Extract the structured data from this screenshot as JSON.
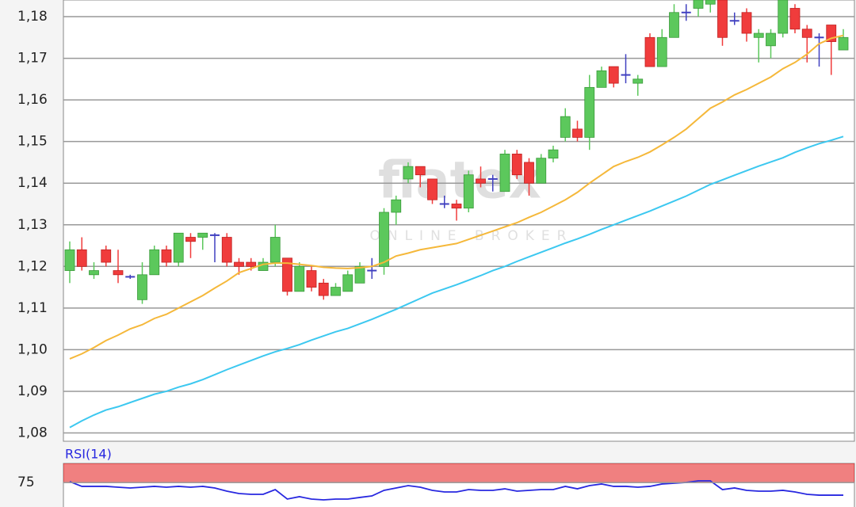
{
  "chart_data": [
    {
      "type": "candlestick",
      "watermark": "flatex",
      "watermark_subtitle": "ONLINE BROKER",
      "open": [
        1.119,
        1.124,
        1.118,
        1.124,
        1.119,
        1.1175,
        1.112,
        1.118,
        1.124,
        1.121,
        1.127,
        1.127,
        1.1275,
        1.127,
        1.121,
        1.121,
        1.119,
        1.121,
        1.122,
        1.114,
        1.119,
        1.116,
        1.113,
        1.114,
        1.116,
        1.119,
        1.12,
        1.133,
        1.141,
        1.144,
        1.141,
        1.135,
        1.135,
        1.134,
        1.141,
        1.141,
        1.138,
        1.147,
        1.145,
        1.14,
        1.146,
        1.151,
        1.153,
        1.151,
        1.163,
        1.168,
        1.166,
        1.164,
        1.175,
        1.168,
        1.175,
        1.181,
        1.182,
        1.183,
        1.184,
        1.179,
        1.181,
        1.175,
        1.173,
        1.176,
        1.182,
        1.177,
        1.175,
        1.178,
        1.172
      ],
      "high": [
        1.126,
        1.127,
        1.121,
        1.125,
        1.124,
        1.118,
        1.121,
        1.125,
        1.125,
        1.128,
        1.128,
        1.128,
        1.128,
        1.128,
        1.122,
        1.122,
        1.122,
        1.13,
        1.122,
        1.121,
        1.12,
        1.117,
        1.116,
        1.119,
        1.121,
        1.122,
        1.134,
        1.137,
        1.145,
        1.144,
        1.141,
        1.137,
        1.136,
        1.143,
        1.144,
        1.142,
        1.148,
        1.148,
        1.146,
        1.147,
        1.149,
        1.158,
        1.155,
        1.166,
        1.168,
        1.168,
        1.171,
        1.166,
        1.176,
        1.177,
        1.183,
        1.183,
        1.184,
        1.184,
        1.184,
        1.181,
        1.182,
        1.177,
        1.177,
        1.184,
        1.183,
        1.178,
        1.176,
        1.178,
        1.177
      ],
      "low": [
        1.116,
        1.119,
        1.117,
        1.12,
        1.116,
        1.117,
        1.111,
        1.118,
        1.12,
        1.12,
        1.122,
        1.124,
        1.121,
        1.12,
        1.118,
        1.119,
        1.119,
        1.12,
        1.113,
        1.114,
        1.114,
        1.112,
        1.113,
        1.114,
        1.116,
        1.117,
        1.118,
        1.13,
        1.14,
        1.139,
        1.135,
        1.134,
        1.131,
        1.133,
        1.139,
        1.138,
        1.138,
        1.141,
        1.137,
        1.14,
        1.145,
        1.15,
        1.15,
        1.148,
        1.163,
        1.163,
        1.164,
        1.161,
        1.168,
        1.168,
        1.175,
        1.179,
        1.18,
        1.181,
        1.173,
        1.178,
        1.174,
        1.169,
        1.17,
        1.175,
        1.176,
        1.169,
        1.168,
        1.166,
        1.172
      ],
      "close": [
        1.124,
        1.12,
        1.119,
        1.121,
        1.118,
        1.1175,
        1.118,
        1.124,
        1.121,
        1.128,
        1.126,
        1.128,
        1.1275,
        1.121,
        1.12,
        1.12,
        1.121,
        1.127,
        1.114,
        1.12,
        1.115,
        1.113,
        1.115,
        1.118,
        1.12,
        1.119,
        1.133,
        1.136,
        1.144,
        1.142,
        1.136,
        1.135,
        1.134,
        1.142,
        1.14,
        1.141,
        1.147,
        1.142,
        1.14,
        1.146,
        1.148,
        1.156,
        1.151,
        1.163,
        1.167,
        1.164,
        1.166,
        1.165,
        1.168,
        1.175,
        1.181,
        1.181,
        1.184,
        1.184,
        1.175,
        1.179,
        1.176,
        1.176,
        1.176,
        1.184,
        1.177,
        1.175,
        1.175,
        1.174,
        1.175
      ],
      "up_color": "#5cc85c",
      "down_color": "#f03c3c",
      "doji_color": "#4040c0",
      "lines": [
        {
          "color": "#f5b83a",
          "values": [
            1.0978,
            1.099,
            1.1005,
            1.1022,
            1.1035,
            1.105,
            1.106,
            1.1075,
            1.1085,
            1.11,
            1.1115,
            1.113,
            1.1148,
            1.1165,
            1.1185,
            1.1195,
            1.1205,
            1.1208,
            1.1208,
            1.1205,
            1.1202,
            1.1198,
            1.1196,
            1.1195,
            1.1197,
            1.12,
            1.121,
            1.1225,
            1.1232,
            1.124,
            1.1245,
            1.125,
            1.1255,
            1.1265,
            1.1275,
            1.1285,
            1.1295,
            1.1305,
            1.1318,
            1.133,
            1.1345,
            1.136,
            1.1378,
            1.14,
            1.142,
            1.144,
            1.1452,
            1.1462,
            1.1475,
            1.1492,
            1.151,
            1.153,
            1.1555,
            1.158,
            1.1595,
            1.1612,
            1.1625,
            1.164,
            1.1655,
            1.1675,
            1.169,
            1.171,
            1.1735,
            1.1748,
            1.1755
          ]
        },
        {
          "color": "#3cc8f0",
          "values": [
            1.0813,
            1.0829,
            1.0843,
            1.0855,
            1.0863,
            1.0873,
            1.0883,
            1.0893,
            1.09,
            1.091,
            1.0918,
            1.0928,
            1.094,
            1.0952,
            1.0963,
            1.0974,
            1.0985,
            1.0995,
            1.1003,
            1.1012,
            1.1023,
            1.1033,
            1.1043,
            1.1051,
            1.1062,
            1.1073,
            1.1085,
            1.1097,
            1.111,
            1.1123,
            1.1136,
            1.1146,
            1.1156,
            1.1167,
            1.1178,
            1.119,
            1.12,
            1.1212,
            1.1223,
            1.1234,
            1.1245,
            1.1256,
            1.1266,
            1.1277,
            1.1289,
            1.13,
            1.1311,
            1.1322,
            1.1333,
            1.1345,
            1.1357,
            1.1369,
            1.1383,
            1.1397,
            1.1408,
            1.1419,
            1.143,
            1.1441,
            1.1451,
            1.1461,
            1.1474,
            1.1485,
            1.1495,
            1.1503,
            1.1512
          ]
        }
      ],
      "ylim": [
        1.078,
        1.184
      ],
      "yticks": [
        {
          "value": 1.08,
          "label": "1,08"
        },
        {
          "value": 1.09,
          "label": "1,09"
        },
        {
          "value": 1.1,
          "label": "1,10"
        },
        {
          "value": 1.11,
          "label": "1,11"
        },
        {
          "value": 1.12,
          "label": "1,12"
        },
        {
          "value": 1.13,
          "label": "1,13"
        },
        {
          "value": 1.14,
          "label": "1,14"
        },
        {
          "value": 1.15,
          "label": "1,15"
        },
        {
          "value": 1.16,
          "label": "1,16"
        },
        {
          "value": 1.17,
          "label": "1,17"
        },
        {
          "value": 1.18,
          "label": "1,18"
        }
      ],
      "grid": true
    },
    {
      "type": "line",
      "title": "RSI(14)",
      "color": "#2828e0",
      "values": [
        76.2,
        70.0,
        70.0,
        70.0,
        68.9,
        67.9,
        68.9,
        70.0,
        68.9,
        70.0,
        68.9,
        70.0,
        67.9,
        63.7,
        60.6,
        59.6,
        59.6,
        65.8,
        53.4,
        56.5,
        53.4,
        52.3,
        53.4,
        53.4,
        55.5,
        57.5,
        64.8,
        67.9,
        71.0,
        68.9,
        64.8,
        62.7,
        62.7,
        65.8,
        64.8,
        64.8,
        66.8,
        63.7,
        64.8,
        65.8,
        65.8,
        70.0,
        66.8,
        71.0,
        73.1,
        70.0,
        70.0,
        68.9,
        70.0,
        73.1,
        74.1,
        75.1,
        77.2,
        77.2,
        65.8,
        67.9,
        64.8,
        63.7,
        63.7,
        64.8,
        62.7,
        59.6,
        58.5,
        58.5,
        58.5
      ],
      "zone": [
        75,
        100
      ],
      "zone_color": "#f08080",
      "ylim": [
        43,
        100
      ],
      "yticks": [
        75
      ],
      "grid": true
    }
  ]
}
